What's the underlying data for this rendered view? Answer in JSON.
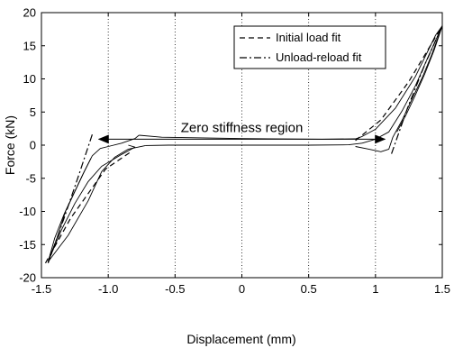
{
  "chart_data": {
    "type": "line",
    "xlabel": "Displacement (mm)",
    "ylabel": "Force (kN)",
    "xlim": [
      -1.5,
      1.5
    ],
    "ylim": [
      -20,
      20
    ],
    "xticks": [
      -1.5,
      -1.0,
      -0.5,
      0,
      0.5,
      1,
      1.5
    ],
    "xtick_labels": [
      "-1.5",
      "-1.0",
      "-0.5",
      "0",
      "0.5",
      "1",
      "1.5"
    ],
    "yticks": [
      -20,
      -15,
      -10,
      -5,
      0,
      5,
      10,
      15,
      20
    ],
    "ytick_labels": [
      "-20",
      "-15",
      "-10",
      "-5",
      "0",
      "5",
      "10",
      "15",
      "20"
    ],
    "grid": "vertical dotted lines at x ticks",
    "legend_position": "top-right",
    "legend": [
      {
        "label": "Initial load fit",
        "style": "dashed"
      },
      {
        "label": "Unload-reload fit",
        "style": "dash-dot"
      }
    ],
    "annotation": {
      "text": "Zero stiffness region",
      "arrow_from_x": -1.07,
      "arrow_to_x": 1.07,
      "arrow_y": 0.9
    },
    "series": [
      {
        "kind": "measured",
        "style": "solid",
        "segments": [
          [
            [
              -0.85,
              0.0
            ],
            [
              -0.8,
              -0.3
            ],
            [
              -0.9,
              -1.4
            ],
            [
              -1.05,
              -3.2
            ],
            [
              -1.15,
              -5.5
            ],
            [
              -1.25,
              -8.8
            ],
            [
              -1.35,
              -12.8
            ],
            [
              -1.45,
              -17.6
            ]
          ],
          [
            [
              -1.45,
              -17.6
            ],
            [
              -1.38,
              -13.8
            ],
            [
              -1.32,
              -10.0
            ],
            [
              -1.25,
              -7.0
            ],
            [
              -1.18,
              -4.0
            ],
            [
              -1.12,
              -1.6
            ],
            [
              -1.06,
              -0.5
            ],
            [
              -1.0,
              -0.2
            ]
          ],
          [
            [
              -1.0,
              -0.2
            ],
            [
              -0.9,
              0.3
            ],
            [
              -0.8,
              1.0
            ],
            [
              -0.77,
              1.5
            ]
          ],
          [
            [
              -1.45,
              -17.6
            ],
            [
              -1.4,
              -14.0
            ],
            [
              -1.33,
              -10.4
            ],
            [
              -1.26,
              -7.4
            ],
            [
              -1.19,
              -4.4
            ],
            [
              -1.13,
              -2.0
            ]
          ],
          [
            [
              -1.45,
              -17.6
            ],
            [
              -1.3,
              -13.6
            ],
            [
              -1.15,
              -8.4
            ],
            [
              -1.05,
              -4.0
            ],
            [
              -0.95,
              -1.8
            ],
            [
              -0.85,
              -0.6
            ],
            [
              -0.72,
              -0.05
            ]
          ],
          [
            [
              -0.72,
              -0.05
            ],
            [
              -0.55,
              0.0
            ],
            [
              0.0,
              0.0
            ],
            [
              0.5,
              0.0
            ],
            [
              0.8,
              0.05
            ],
            [
              0.9,
              0.3
            ]
          ],
          [
            [
              -0.77,
              1.5
            ],
            [
              -0.6,
              1.2
            ],
            [
              0.0,
              1.0
            ],
            [
              0.6,
              0.9
            ],
            [
              0.85,
              0.95
            ]
          ],
          [
            [
              0.85,
              0.95
            ],
            [
              0.9,
              1.3
            ],
            [
              1.0,
              2.4
            ],
            [
              1.15,
              5.6
            ],
            [
              1.3,
              10.4
            ],
            [
              1.45,
              16.6
            ],
            [
              1.5,
              18.0
            ]
          ],
          [
            [
              0.9,
              0.3
            ],
            [
              1.0,
              0.9
            ],
            [
              1.1,
              2.0
            ],
            [
              1.2,
              5.2
            ],
            [
              1.3,
              9.0
            ],
            [
              1.4,
              13.6
            ],
            [
              1.5,
              18.0
            ]
          ],
          [
            [
              1.5,
              18.0
            ],
            [
              1.42,
              13.6
            ],
            [
              1.35,
              10.2
            ],
            [
              1.27,
              6.8
            ],
            [
              1.2,
              3.8
            ],
            [
              1.13,
              1.2
            ],
            [
              1.1,
              -0.6
            ],
            [
              1.04,
              -1.0
            ],
            [
              0.95,
              -0.6
            ],
            [
              0.85,
              -0.2
            ]
          ],
          [
            [
              1.5,
              18.0
            ],
            [
              1.44,
              14.4
            ],
            [
              1.37,
              10.8
            ],
            [
              1.3,
              7.6
            ],
            [
              1.23,
              4.6
            ],
            [
              1.16,
              2.0
            ]
          ]
        ]
      },
      {
        "name": "Initial load fit",
        "style": "dashed",
        "segments": [
          [
            [
              -1.47,
              -17.8
            ],
            [
              -1.28,
              -11.0
            ],
            [
              -1.02,
              -3.6
            ],
            [
              -0.83,
              -1.0
            ]
          ],
          [
            [
              0.85,
              0.7
            ],
            [
              1.04,
              3.8
            ],
            [
              1.25,
              9.6
            ],
            [
              1.5,
              18.0
            ]
          ]
        ]
      },
      {
        "name": "Unload-reload fit",
        "style": "dash-dot",
        "segments": [
          [
            [
              -1.12,
              1.6
            ],
            [
              -1.22,
              -4.5
            ],
            [
              -1.33,
              -11.0
            ],
            [
              -1.45,
              -17.8
            ]
          ],
          [
            [
              1.12,
              -1.3
            ],
            [
              1.24,
              5.6
            ],
            [
              1.37,
              12.2
            ],
            [
              1.5,
              18.0
            ]
          ]
        ]
      }
    ]
  }
}
